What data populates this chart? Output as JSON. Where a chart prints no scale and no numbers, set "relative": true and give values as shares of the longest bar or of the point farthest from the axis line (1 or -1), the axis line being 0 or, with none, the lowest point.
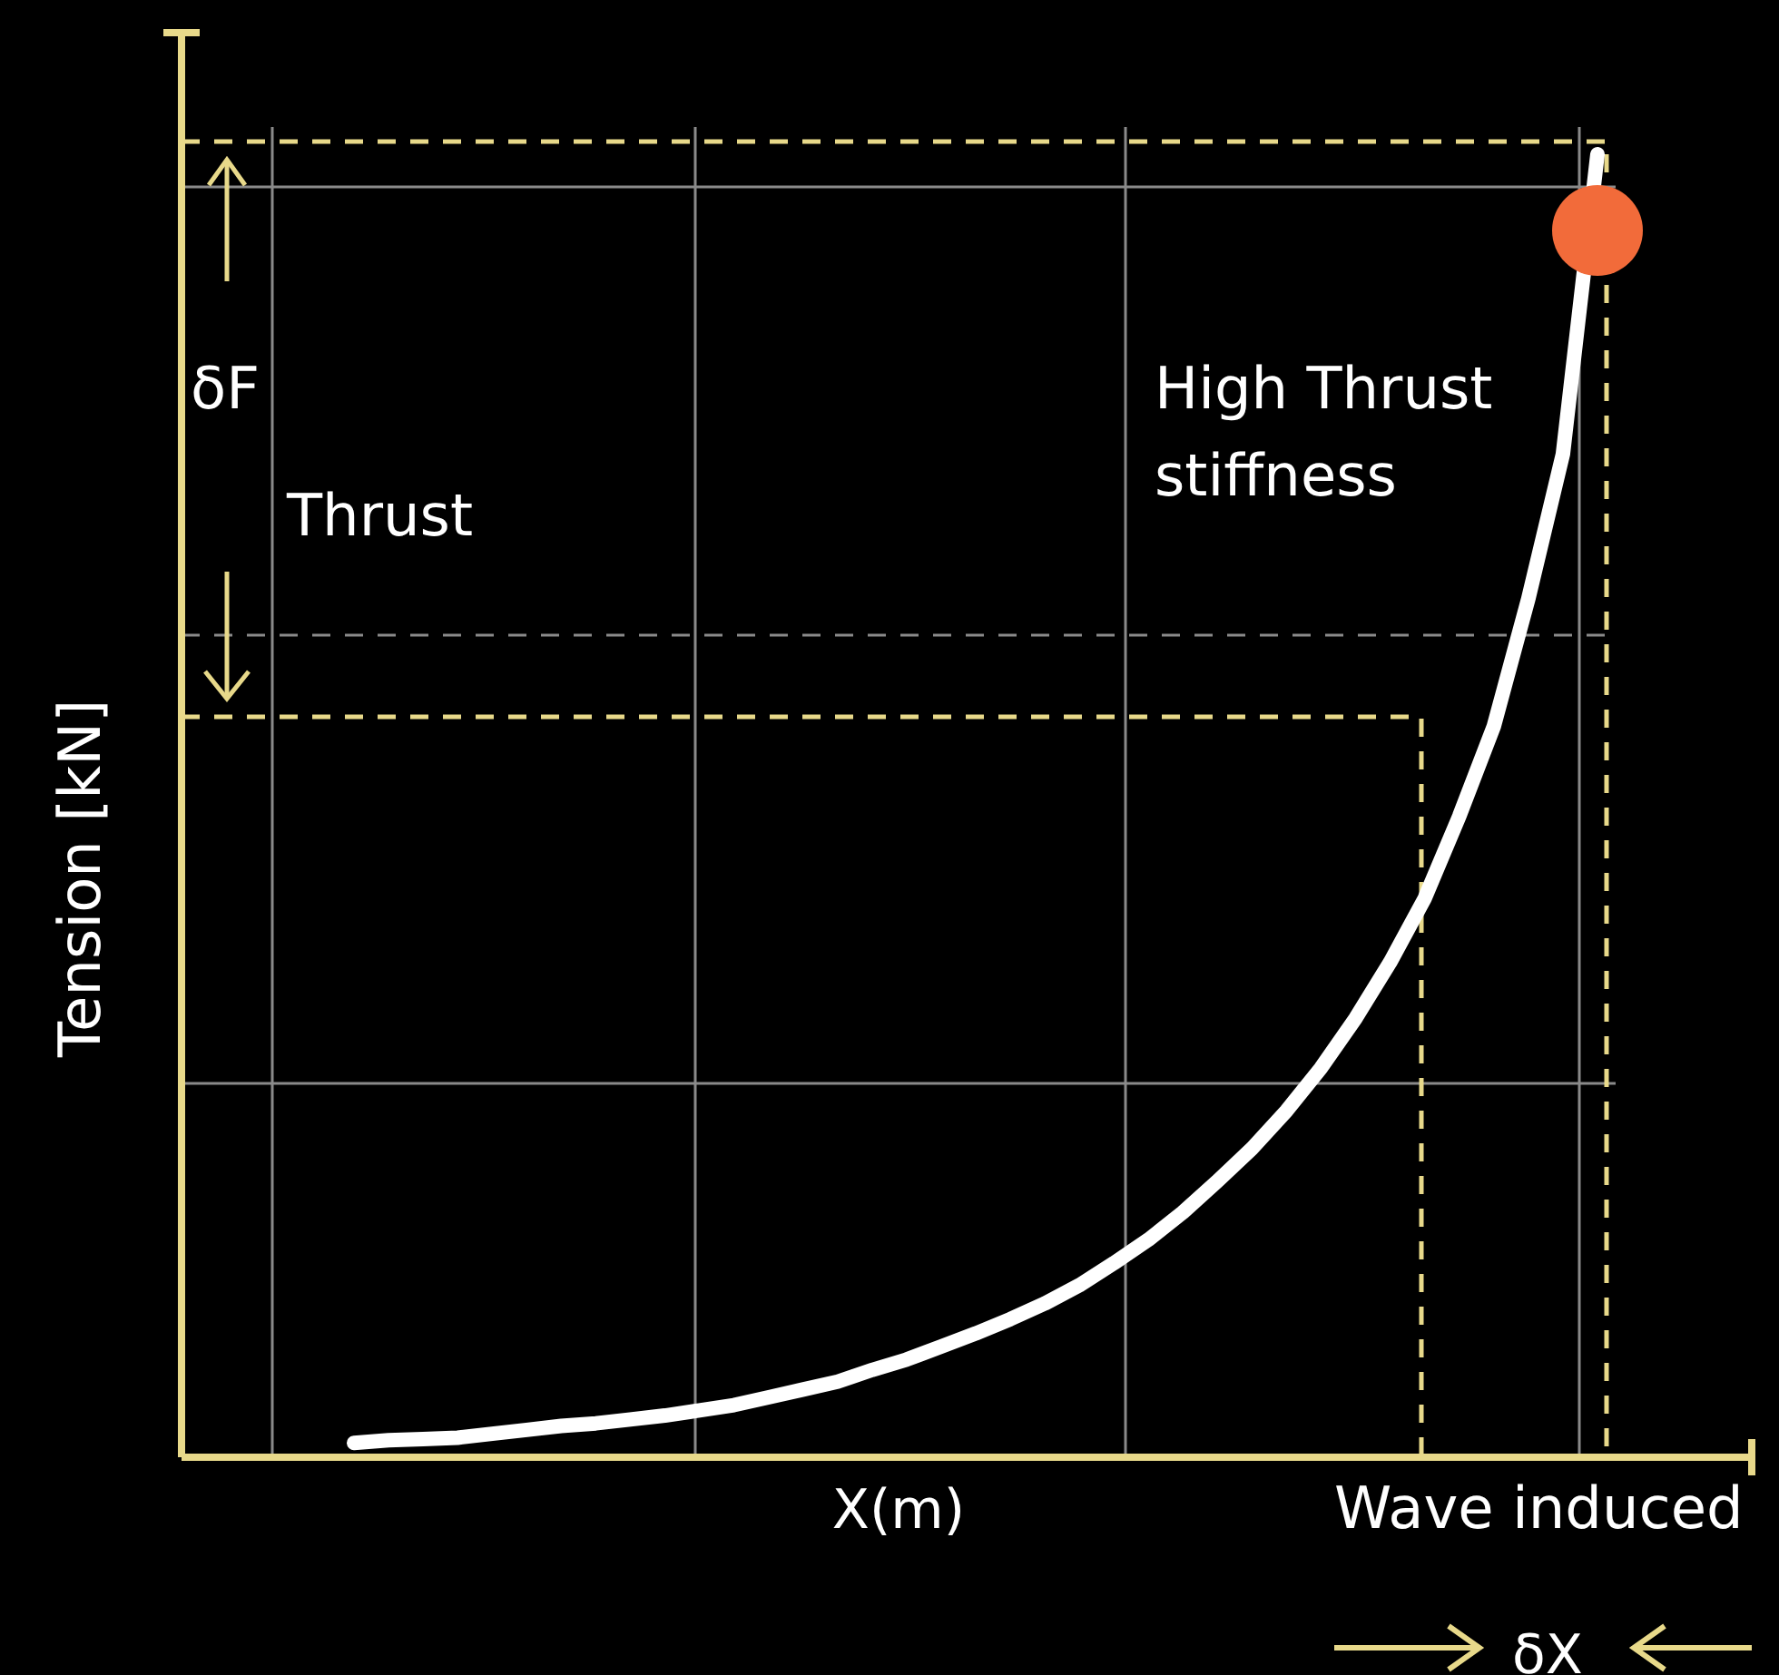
{
  "chart_data": {
    "type": "line",
    "relative": true,
    "xlabel": "X(m)",
    "ylabel": "Tension [kN]",
    "categories": [
      null,
      null,
      null,
      null,
      null,
      null,
      null,
      null,
      null,
      null,
      null,
      null,
      null,
      null,
      null,
      null,
      null,
      null,
      null,
      null,
      null,
      null,
      null,
      null,
      null,
      null,
      null,
      null,
      null,
      null,
      null,
      null,
      null,
      null,
      null,
      null,
      null
    ],
    "series": [
      {
        "color": "#ffffff",
        "values": [
          0.011,
          0.013,
          0.014,
          0.015,
          0.018,
          0.021,
          0.024,
          0.026,
          0.029,
          0.032,
          0.036,
          0.04,
          0.046,
          0.052,
          0.058,
          0.067,
          0.075,
          0.085,
          0.095,
          0.106,
          0.118,
          0.132,
          0.149,
          0.167,
          0.188,
          0.212,
          0.237,
          0.266,
          0.299,
          0.337,
          0.38,
          0.429,
          0.492,
          0.561,
          0.659,
          0.77,
          1.0
        ]
      }
    ],
    "annotations": [
      "δF",
      "Thrust",
      "High Thrust stiffness",
      "Wave induced",
      "δX"
    ],
    "ref_lines": [
      {
        "axis": "y",
        "value": 0.631,
        "color": "#8a8a8a",
        "line_style": "dashed"
      }
    ],
    "grid": true
  }
}
